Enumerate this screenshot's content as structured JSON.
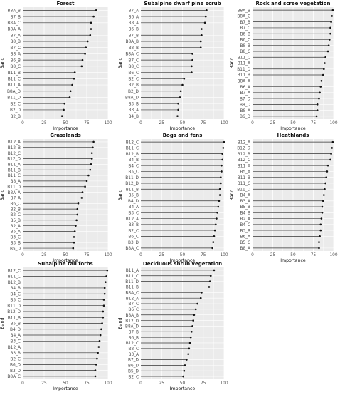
{
  "chart_data": [
    {
      "type": "lollipop",
      "title": "Forest",
      "xlabel": "Importance",
      "ylabel": "Band",
      "xlim": [
        0,
        100
      ],
      "xticks": [
        "0",
        "25",
        "50",
        "75",
        "100"
      ],
      "grid": true,
      "bands": [
        "B8A_B",
        "B7_B",
        "B8A_C",
        "B8A_A",
        "B7_A",
        "B8_B",
        "B7_C",
        "B8_A",
        "B6_B",
        "B8_C",
        "B11_B",
        "B11_C",
        "B11_A",
        "B8A_D",
        "B11_D",
        "B2_C",
        "B2_D",
        "B2_B"
      ],
      "values": [
        86,
        83,
        80,
        80,
        79,
        76,
        74,
        73,
        70,
        69,
        61,
        60,
        58,
        56,
        55,
        49,
        48,
        46
      ]
    },
    {
      "type": "lollipop",
      "title": "Subalpine dwarf pine scrub",
      "xlabel": "Importance",
      "ylabel": "Band",
      "xlim": [
        0,
        100
      ],
      "xticks": [
        "0",
        "25",
        "50",
        "75",
        "100"
      ],
      "grid": true,
      "bands": [
        "B7_A",
        "B6_A",
        "B8_A",
        "B6_B",
        "B7_B",
        "B8A_B",
        "B8_B",
        "B8A_C",
        "B7_C",
        "B8_C",
        "B6_C",
        "B2_C",
        "B2_B",
        "B2_D",
        "B8A_D",
        "B3_B",
        "B3_A",
        "B4_B"
      ],
      "values": [
        79,
        78,
        77,
        73,
        73,
        72,
        72,
        62,
        62,
        61,
        61,
        52,
        50,
        48,
        47,
        45,
        45,
        44
      ]
    },
    {
      "type": "lollipop",
      "title": "Rock and scree vegetation",
      "xlabel": "Importance",
      "ylabel": "Band",
      "xlim": [
        0,
        100
      ],
      "xticks": [
        "0",
        "25",
        "50",
        "75",
        "100"
      ],
      "grid": true,
      "bands": [
        "B8A_B",
        "B8A_C",
        "B7_B",
        "B7_C",
        "B6_B",
        "B6_C",
        "B8_B",
        "B8_C",
        "B11_C",
        "B11_A",
        "B11_D",
        "B11_B",
        "B8A_A",
        "B6_A",
        "B7_A",
        "B7_D",
        "B8_D",
        "B8_A",
        "B6_D"
      ],
      "values": [
        99,
        98,
        97,
        96,
        96,
        95,
        94,
        93,
        90,
        89,
        88,
        87,
        85,
        84,
        83,
        82,
        80,
        80,
        79
      ]
    },
    {
      "type": "lollipop",
      "title": "Grasslands",
      "xlabel": "Importance",
      "ylabel": "Band",
      "xlim": [
        0,
        100
      ],
      "xticks": [
        "0",
        "25",
        "50",
        "75",
        "100"
      ],
      "grid": true,
      "bands": [
        "B12_A",
        "B12_B",
        "B12_C",
        "B12_D",
        "B11_A",
        "B11_B",
        "B11_C",
        "B8_A",
        "B11_D",
        "B8A_A",
        "B7_A",
        "B6_C",
        "B2_B",
        "B2_C",
        "B5_B",
        "B2_A",
        "B5_A",
        "B3_C",
        "B3_B",
        "B5_D"
      ],
      "values": [
        83,
        82,
        81,
        81,
        80,
        79,
        77,
        75,
        73,
        70,
        69,
        65,
        64,
        64,
        63,
        62,
        61,
        60,
        60,
        59
      ]
    },
    {
      "type": "lollipop",
      "title": "Bogs and fens",
      "xlabel": "Importance",
      "ylabel": "Band",
      "xlim": [
        0,
        100
      ],
      "xticks": [
        "0",
        "25",
        "50",
        "75",
        "100"
      ],
      "grid": true,
      "bands": [
        "B12_C",
        "B11_C",
        "B12_B",
        "B4_B",
        "B4_C",
        "B5_C",
        "B11_D",
        "B12_D",
        "B11_B",
        "B5_B",
        "B4_D",
        "B4_A",
        "B3_C",
        "B12_A",
        "B3_B",
        "B2_C",
        "B6_C",
        "B3_D",
        "B8A_C"
      ],
      "values": [
        100,
        99,
        98,
        98,
        97,
        97,
        96,
        96,
        95,
        95,
        94,
        93,
        92,
        91,
        90,
        89,
        88,
        87,
        86
      ]
    },
    {
      "type": "lollipop",
      "title": "Heathlands",
      "xlabel": "Importance",
      "ylabel": "Band",
      "xlim": [
        0,
        100
      ],
      "xticks": [
        "0",
        "25",
        "50",
        "75",
        "100"
      ],
      "grid": true,
      "bands": [
        "B12_A",
        "B12_D",
        "B12_B",
        "B12_C",
        "B11_A",
        "B5_A",
        "B11_B",
        "B11_C",
        "B11_D",
        "B4_A",
        "B3_A",
        "B5_B",
        "B4_B",
        "B2_A",
        "B4_C",
        "B3_B",
        "B6_A",
        "B5_C",
        "B8_A"
      ],
      "values": [
        99,
        98,
        97,
        96,
        93,
        92,
        91,
        90,
        89,
        88,
        87,
        86,
        86,
        85,
        84,
        84,
        83,
        82,
        82
      ]
    },
    {
      "type": "lollipop",
      "title": "Subalpine tall forbs",
      "xlabel": "Importance",
      "ylabel": "Band",
      "xlim": [
        0,
        100
      ],
      "xticks": [
        "0",
        "25",
        "50",
        "75",
        "100"
      ],
      "grid": true,
      "bands": [
        "B12_C",
        "B11_C",
        "B12_B",
        "B4_B",
        "B4_C",
        "B5_C",
        "B11_D",
        "B12_D",
        "B11_B",
        "B5_B",
        "B4_D",
        "B4_A",
        "B3_C",
        "B12_A",
        "B3_B",
        "B2_C",
        "B6_D",
        "B3_D",
        "B8A_C"
      ],
      "values": [
        99,
        98,
        97,
        96,
        96,
        95,
        95,
        94,
        94,
        93,
        92,
        91,
        90,
        89,
        88,
        87,
        86,
        85,
        85
      ]
    },
    {
      "type": "lollipop",
      "title": "Deciduous shrub vegetation",
      "xlabel": "Importance",
      "ylabel": "Band",
      "xlim": [
        0,
        100
      ],
      "xticks": [
        "0",
        "25",
        "50",
        "75",
        "100"
      ],
      "grid": true,
      "bands": [
        "B11_A",
        "B11_C",
        "B11_D",
        "B11_B",
        "B8A_C",
        "B12_A",
        "B7_C",
        "B6_C",
        "B8A_B",
        "B12_D",
        "B8A_D",
        "B7_B",
        "B6_B",
        "B12_C",
        "B8_C",
        "B3_A",
        "B7_D",
        "B6_D",
        "B5_D",
        "B2_C"
      ],
      "values": [
        88,
        84,
        83,
        82,
        73,
        72,
        68,
        66,
        64,
        63,
        62,
        61,
        60,
        59,
        58,
        57,
        55,
        53,
        52,
        51
      ]
    }
  ],
  "style": {
    "panel_bg": "#ebebeb",
    "grid_color": "#ffffff",
    "stem_color": "#333333",
    "point_color": "#111111"
  }
}
